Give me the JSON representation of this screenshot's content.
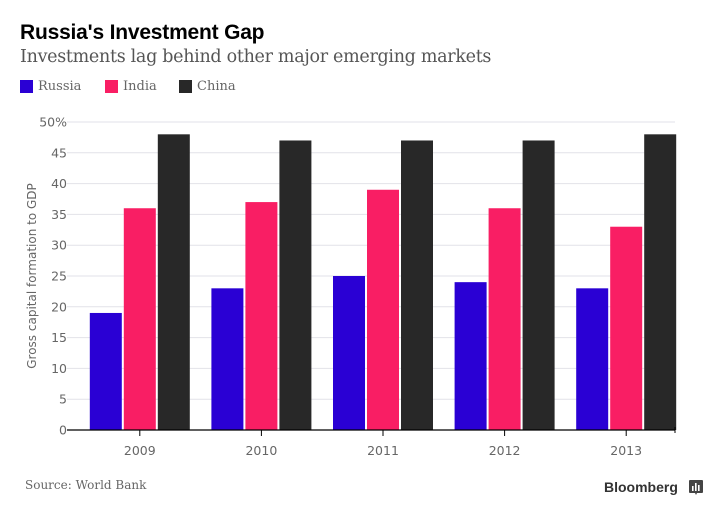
{
  "header": {
    "title": "Russia's Investment Gap",
    "subtitle": "Investments lag behind other major emerging markets"
  },
  "footer": {
    "source": "Source: World Bank",
    "brand": "Bloomberg",
    "brand_icon": "bar-chart-icon"
  },
  "chart_data": {
    "type": "bar",
    "title": "Russia's Investment Gap",
    "subtitle": "Investments lag behind other major emerging markets",
    "xlabel": "",
    "ylabel": "Gross capital formation to GDP",
    "categories": [
      "2009",
      "2010",
      "2011",
      "2012",
      "2013"
    ],
    "series": [
      {
        "name": "Russia",
        "color": "#2a00d4",
        "values": [
          19,
          23,
          25,
          24,
          23
        ]
      },
      {
        "name": "India",
        "color": "#f91e64",
        "values": [
          36,
          37,
          39,
          36,
          33
        ]
      },
      {
        "name": "China",
        "color": "#282828",
        "values": [
          48,
          47,
          47,
          47,
          48
        ]
      }
    ],
    "ylim": [
      0,
      50
    ],
    "yticks": [
      0,
      5,
      10,
      15,
      20,
      25,
      30,
      35,
      40,
      45,
      50
    ],
    "ytick_labels": [
      "0",
      "5",
      "10",
      "15",
      "20",
      "25",
      "30",
      "35",
      "40",
      "45",
      "50%"
    ],
    "grid": true,
    "legend_position": "top-left",
    "source": "Source: World Bank"
  }
}
